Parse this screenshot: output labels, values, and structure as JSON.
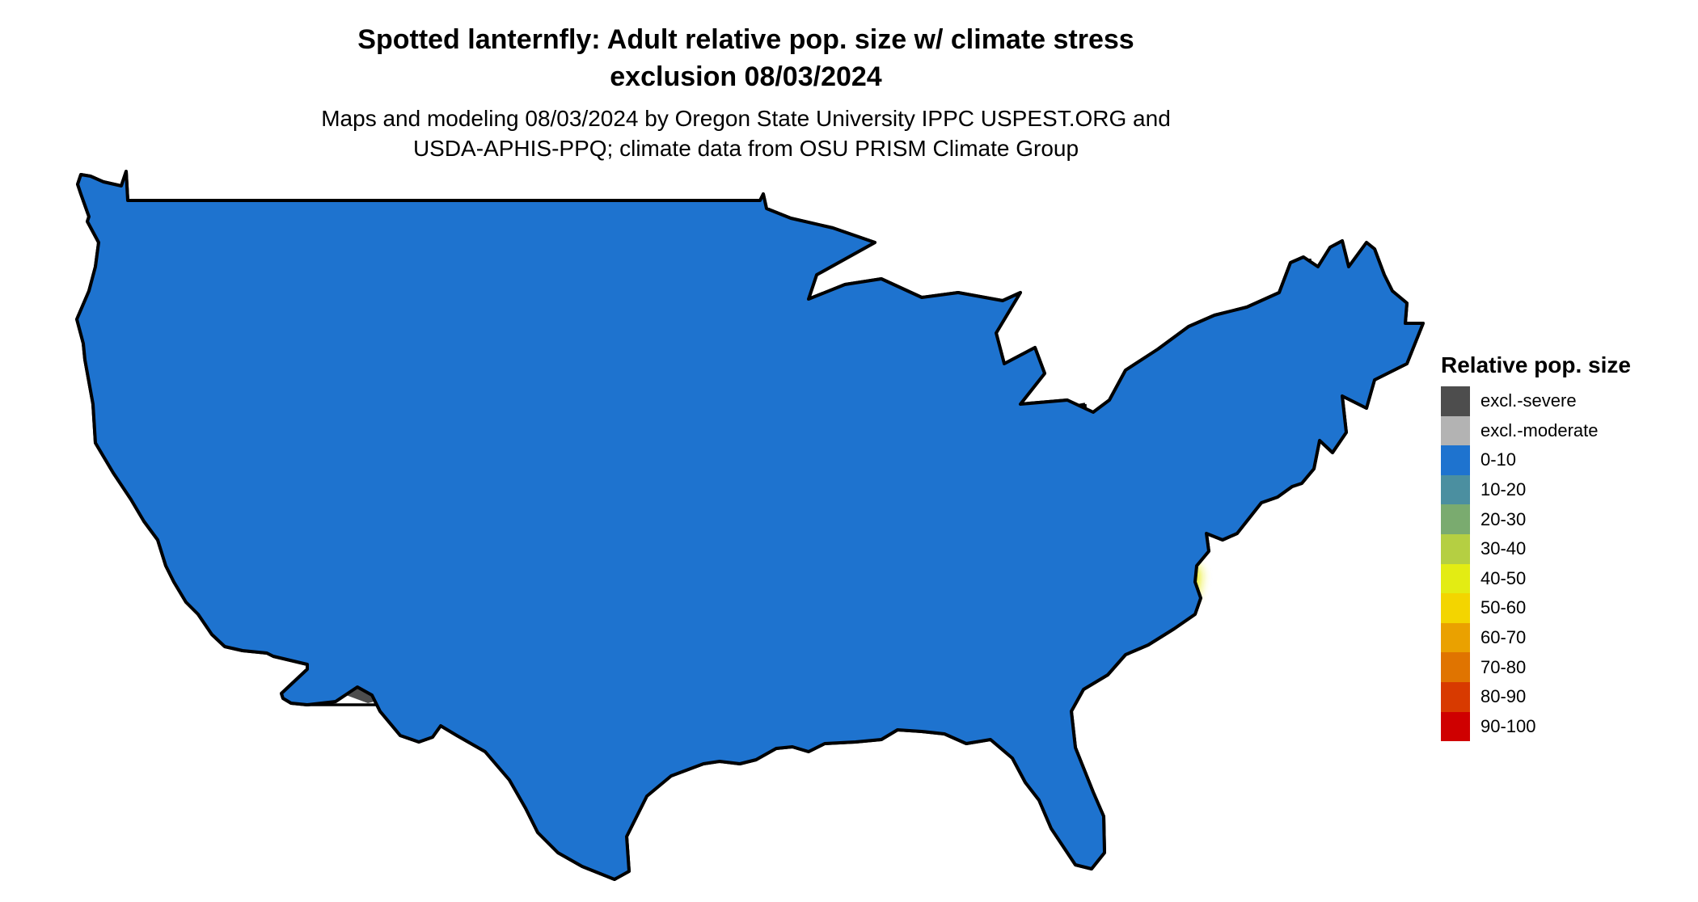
{
  "header": {
    "title_line1": "Spotted lanternfly: Adult relative pop. size w/ climate stress",
    "title_line2": "exclusion 08/03/2024",
    "subtitle_line1": "Maps and modeling 08/03/2024 by Oregon State University IPPC USPEST.ORG and",
    "subtitle_line2": "USDA-APHIS-PPQ; climate data from OSU PRISM Climate Group"
  },
  "map": {
    "base_color": "#1e73cf",
    "border_color": "#000000",
    "hotspot_colors": [
      "#ccd61e",
      "#e9ec13",
      "#f1c000",
      "#ea9100",
      "#db4d00",
      "#cf1b00"
    ],
    "exclusion_colors": [
      "#4d4d4d",
      "#b3b3b3"
    ]
  },
  "legend": {
    "title": "Relative pop. size",
    "items": [
      {
        "label": "excl.-severe",
        "color": "#4d4d4d"
      },
      {
        "label": "excl.-moderate",
        "color": "#b3b3b3"
      },
      {
        "label": "0-10",
        "color": "#1e73cf"
      },
      {
        "label": "10-20",
        "color": "#4b8fa0"
      },
      {
        "label": "20-30",
        "color": "#7aab6f"
      },
      {
        "label": "30-40",
        "color": "#b5cf42"
      },
      {
        "label": "40-50",
        "color": "#e3ec13"
      },
      {
        "label": "50-60",
        "color": "#f3d500"
      },
      {
        "label": "60-70",
        "color": "#eaa100"
      },
      {
        "label": "70-80",
        "color": "#e07400"
      },
      {
        "label": "80-90",
        "color": "#d83a00"
      },
      {
        "label": "90-100",
        "color": "#cf0000"
      }
    ]
  }
}
